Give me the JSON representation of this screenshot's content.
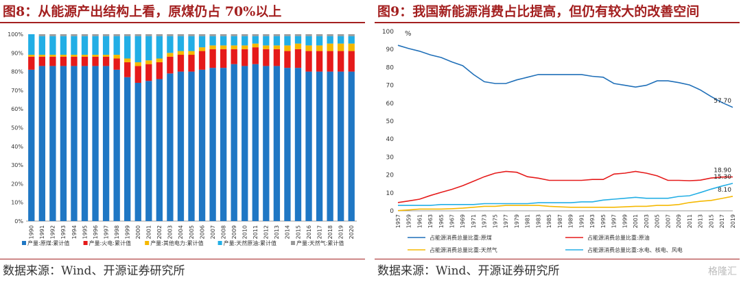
{
  "left": {
    "title": "图8：从能源产出结构上看，原煤仍占 70%以上",
    "source": "数据来源：Wind、开源证券研究所",
    "chart_data": {
      "type": "bar",
      "stacked": true,
      "categories": [
        "1990",
        "1991",
        "1992",
        "1993",
        "1994",
        "1995",
        "1996",
        "1997",
        "1998",
        "1999",
        "2000",
        "2001",
        "2002",
        "2003",
        "2004",
        "2005",
        "2006",
        "2007",
        "2008",
        "2009",
        "2010",
        "2011",
        "2012",
        "2013",
        "2014",
        "2015",
        "2016",
        "2017",
        "2018",
        "2019",
        "2020"
      ],
      "ylim": [
        0,
        100
      ],
      "yticks": [
        "0%",
        "10%",
        "20%",
        "30%",
        "40%",
        "50%",
        "60%",
        "70%",
        "80%",
        "90%",
        "100%"
      ],
      "series": [
        {
          "name": "产量:原煤:累计值",
          "color": "#1f77c4",
          "values": [
            81,
            83,
            83,
            83,
            83,
            83,
            83,
            83,
            81,
            77,
            74,
            75,
            76,
            79,
            80,
            80,
            81,
            82,
            82,
            84,
            83,
            84,
            83,
            83,
            82,
            82,
            80,
            80,
            80,
            80,
            80
          ]
        },
        {
          "name": "产量:火电:累计值",
          "color": "#e51a1a",
          "values": [
            7,
            5,
            5,
            5,
            5,
            5,
            5,
            5,
            6,
            8,
            9,
            9,
            9,
            9,
            9,
            9,
            10,
            10,
            10,
            8,
            9,
            9,
            9,
            9,
            9,
            10,
            11,
            11,
            11,
            11,
            11
          ]
        },
        {
          "name": "产量:其他电力:累计值",
          "color": "#f5b800",
          "values": [
            1,
            1,
            1,
            1,
            1,
            1,
            1,
            1,
            2,
            2,
            2,
            2,
            2,
            2,
            2,
            2,
            2,
            2,
            2,
            2,
            2,
            2,
            2,
            2,
            3,
            3,
            3,
            3,
            4,
            4,
            4
          ]
        },
        {
          "name": "产量:天然原油:累计值",
          "color": "#22aee5",
          "values": [
            11,
            10,
            10,
            10,
            10,
            10,
            10,
            10,
            10,
            12,
            14,
            13,
            12,
            9,
            8,
            8,
            6,
            5,
            5,
            5,
            5,
            4,
            5,
            5,
            5,
            4,
            5,
            5,
            4,
            4,
            4
          ]
        },
        {
          "name": "产量:天然气:累计值",
          "color": "#999999",
          "values": [
            0,
            1,
            1,
            1,
            1,
            1,
            1,
            1,
            1,
            1,
            1,
            1,
            1,
            1,
            1,
            1,
            1,
            1,
            1,
            1,
            1,
            1,
            1,
            1,
            1,
            1,
            1,
            1,
            1,
            1,
            1
          ]
        }
      ]
    }
  },
  "right": {
    "title": "图9：我国新能源消费占比提高，但仍有较大的改善空间",
    "source": "数据来源：Wind、开源证券研究所",
    "watermark": "格隆汇",
    "chart_data": {
      "type": "line",
      "unit": "%",
      "ylim": [
        0,
        100
      ],
      "yticks": [
        0,
        10,
        20,
        30,
        40,
        50,
        60,
        70,
        80,
        90,
        100
      ],
      "x": [
        1957,
        1959,
        1961,
        1963,
        1965,
        1967,
        1969,
        1971,
        1973,
        1975,
        1977,
        1979,
        1981,
        1983,
        1985,
        1987,
        1989,
        1991,
        1993,
        1995,
        1997,
        1999,
        2001,
        2003,
        2005,
        2007,
        2009,
        2011,
        2013,
        2015,
        2017,
        2019
      ],
      "series": [
        {
          "name": "占能源消费总量比重:原煤",
          "color": "#1f6fb8",
          "values": [
            92.3,
            90.5,
            89,
            87,
            85.5,
            83,
            80.9,
            76,
            72,
            71,
            71,
            73,
            74.5,
            76,
            76,
            76,
            76,
            76,
            75,
            74.5,
            71,
            70,
            69,
            70,
            72.5,
            72.5,
            71.5,
            70.2,
            67.4,
            63.7,
            60.4,
            57.7
          ],
          "end_label": "57.70"
        },
        {
          "name": "占能源消费总量比重:原油",
          "color": "#e51a1a",
          "values": [
            4.6,
            5.5,
            6.5,
            8.5,
            10.3,
            12,
            14,
            16.5,
            19,
            21,
            22,
            21.5,
            19,
            18.2,
            17,
            17,
            17,
            17,
            17.5,
            17.5,
            20.5,
            21,
            22,
            21,
            19.5,
            17,
            17,
            16.8,
            17.1,
            18.3,
            18.8,
            18.9
          ],
          "end_label": "18.90"
        },
        {
          "name": "占能源消费总量比重:天然气",
          "color": "#f5b800",
          "values": [
            0.1,
            0.5,
            1,
            1,
            1,
            1.2,
            1.5,
            2,
            2.5,
            2.5,
            3,
            3,
            3,
            3,
            2.5,
            2.2,
            2,
            2,
            2,
            2,
            2,
            2.2,
            2.5,
            2.5,
            3,
            3,
            3.5,
            4.6,
            5.3,
            5.8,
            6.9,
            8.1
          ],
          "end_label": "8.10"
        },
        {
          "name": "占能源消费总量比重:水电、核电、风电",
          "color": "#22aee5",
          "values": [
            3,
            3,
            3,
            3,
            3.5,
            3.5,
            3.5,
            3.5,
            4,
            4,
            4,
            4,
            4,
            4.5,
            4.5,
            4.5,
            4.5,
            5,
            5,
            6,
            6.5,
            7,
            7.5,
            7,
            7,
            7,
            8,
            8.4,
            10.2,
            12.1,
            13.8,
            15.3
          ],
          "end_label": "15.30"
        }
      ]
    }
  }
}
